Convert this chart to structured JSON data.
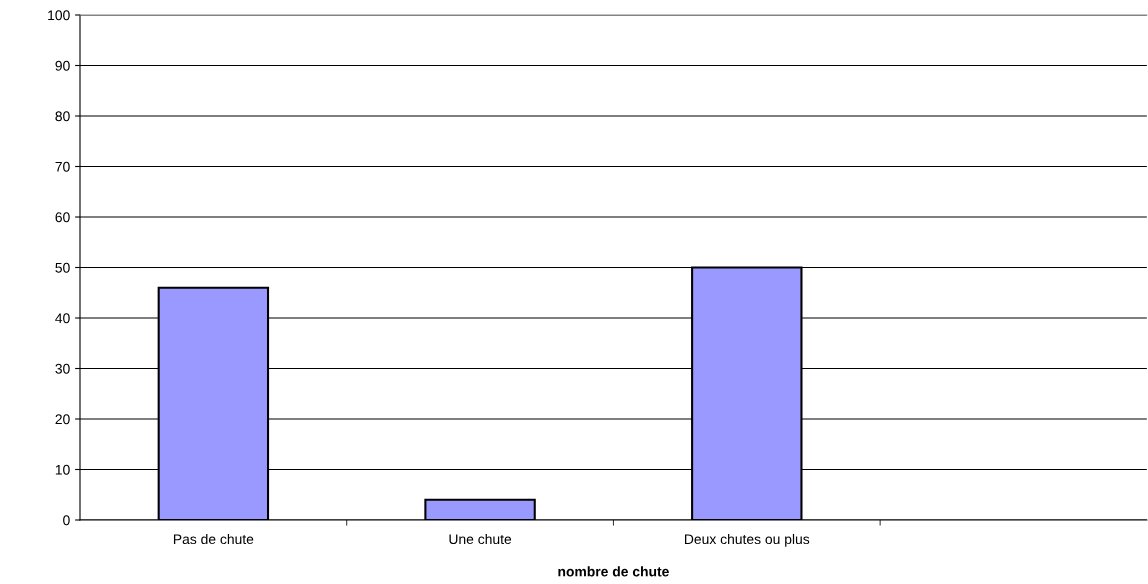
{
  "chart_data": {
    "type": "bar",
    "xlabel": "nombre de chute",
    "categories": [
      "Pas de chute",
      "Une chute",
      "Deux chutes ou plus",
      null
    ],
    "values": [
      46,
      4,
      50,
      null
    ],
    "color": "#9999ff",
    "ylim": [
      0,
      100
    ],
    "yticks": [
      0,
      10,
      20,
      30,
      40,
      50,
      60,
      70,
      80,
      90,
      100
    ],
    "grid": "y"
  }
}
